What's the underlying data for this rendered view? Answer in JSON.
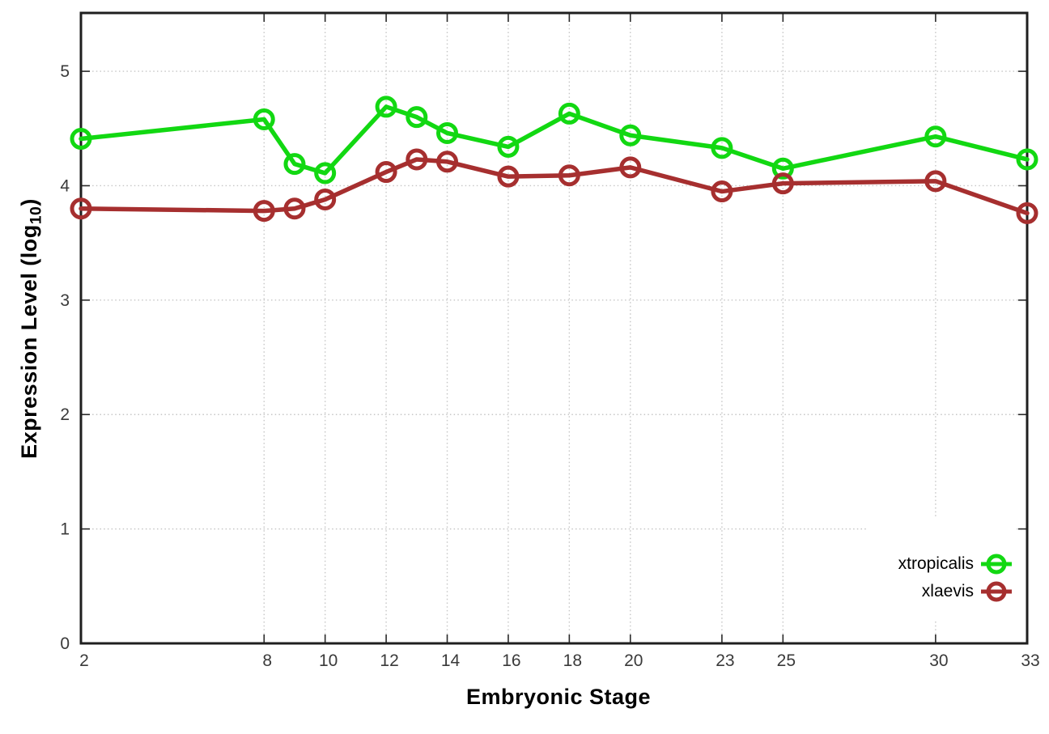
{
  "chart_data": {
    "type": "line",
    "title": "",
    "xlabel": "Embryonic Stage",
    "ylabel_parts": {
      "pre": "Expression Level (log",
      "sub": "10",
      "post": ")"
    },
    "x": [
      2,
      8,
      9,
      10,
      12,
      13,
      14,
      16,
      18,
      20,
      23,
      25,
      30,
      33
    ],
    "xtick_labels": [
      2,
      8,
      10,
      12,
      14,
      16,
      18,
      20,
      23,
      25,
      30,
      33
    ],
    "ytick_labels": [
      0,
      1,
      2,
      3,
      4,
      5
    ],
    "xlim": [
      2,
      33
    ],
    "ylim": [
      0,
      5.51
    ],
    "grid": true,
    "legend_position": "inside-bottom-right",
    "series": [
      {
        "name": "xtropicalis",
        "color": "#12d812",
        "marker": "open-circle",
        "values": [
          4.41,
          4.58,
          4.19,
          4.11,
          4.69,
          4.6,
          4.46,
          4.34,
          4.63,
          4.44,
          4.33,
          4.15,
          4.43,
          4.23
        ]
      },
      {
        "name": "xlaevis",
        "color": "#a62f2f",
        "marker": "open-circle",
        "values": [
          3.8,
          3.78,
          3.8,
          3.88,
          4.12,
          4.23,
          4.21,
          4.08,
          4.09,
          4.16,
          3.95,
          4.02,
          4.04,
          3.76
        ]
      }
    ]
  },
  "colors": {
    "background": "#ffffff",
    "border": "#1f1f1f",
    "grid": "#c6c6c6",
    "tick": "#2a2a2a",
    "tick_label": "#3a3a3a",
    "axis_label": "#000000"
  }
}
